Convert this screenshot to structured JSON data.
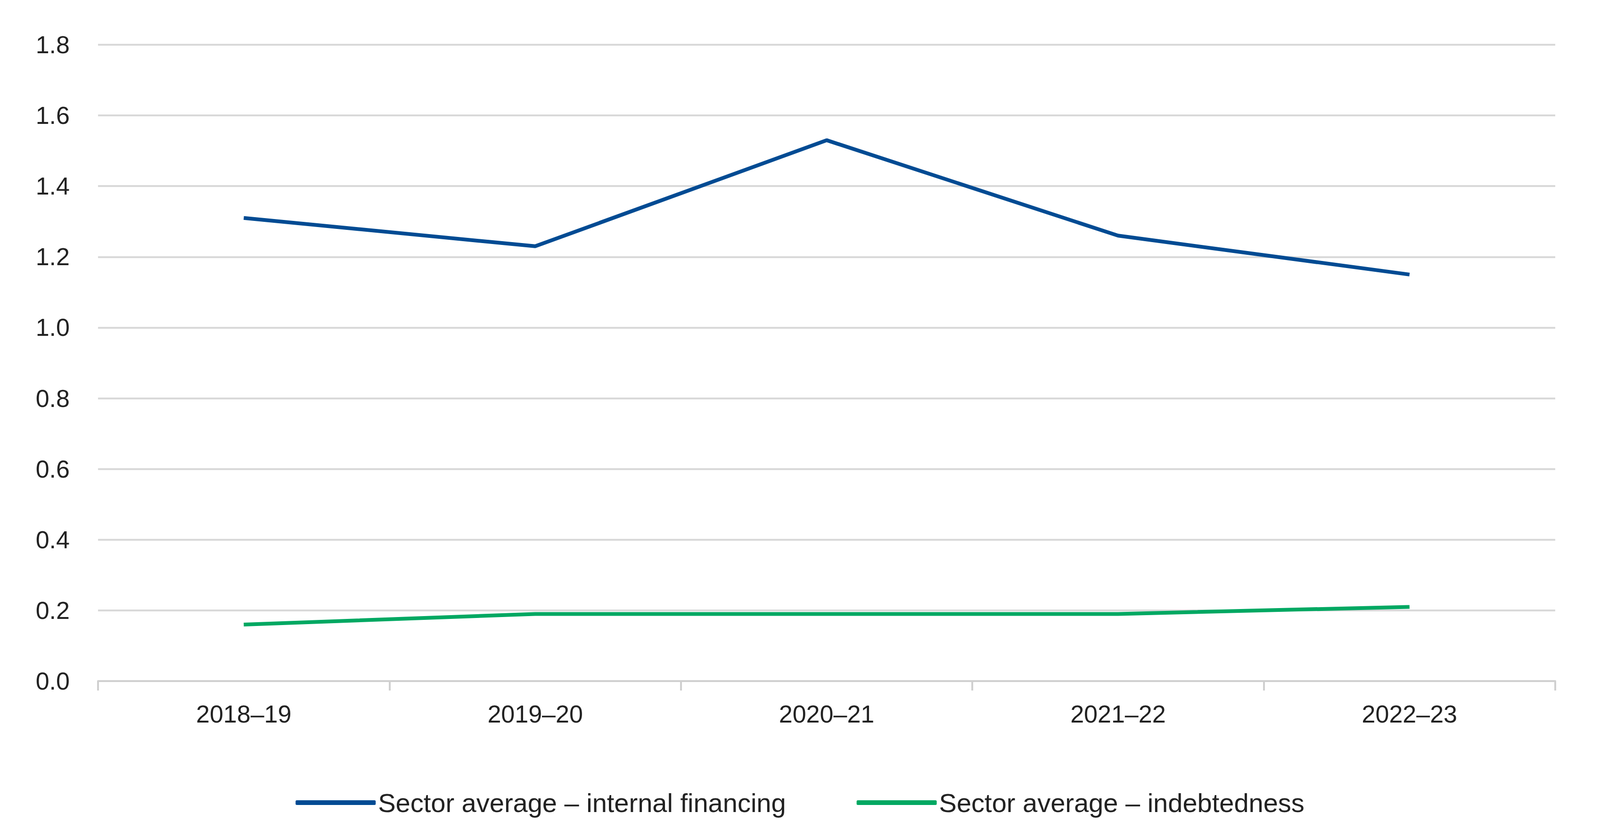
{
  "chart_data": {
    "type": "line",
    "categories": [
      "2018–19",
      "2019–20",
      "2020–21",
      "2021–22",
      "2022–23"
    ],
    "series": [
      {
        "name": "Sector average – internal financing",
        "color": "#004b93",
        "values": [
          1.31,
          1.23,
          1.53,
          1.26,
          1.15
        ]
      },
      {
        "name": "Sector average – indebtedness",
        "color": "#00a862",
        "values": [
          0.16,
          0.19,
          0.19,
          0.19,
          0.21
        ]
      }
    ],
    "ylim": [
      0,
      1.8
    ],
    "yticks": [
      {
        "value": 0,
        "label": "0.0"
      },
      0.2,
      0.4,
      0.6,
      0.8,
      {
        "value": 1,
        "label": "1.0"
      },
      1.2,
      1.4,
      1.6,
      1.8
    ],
    "grid": true,
    "legend": "bottom"
  }
}
